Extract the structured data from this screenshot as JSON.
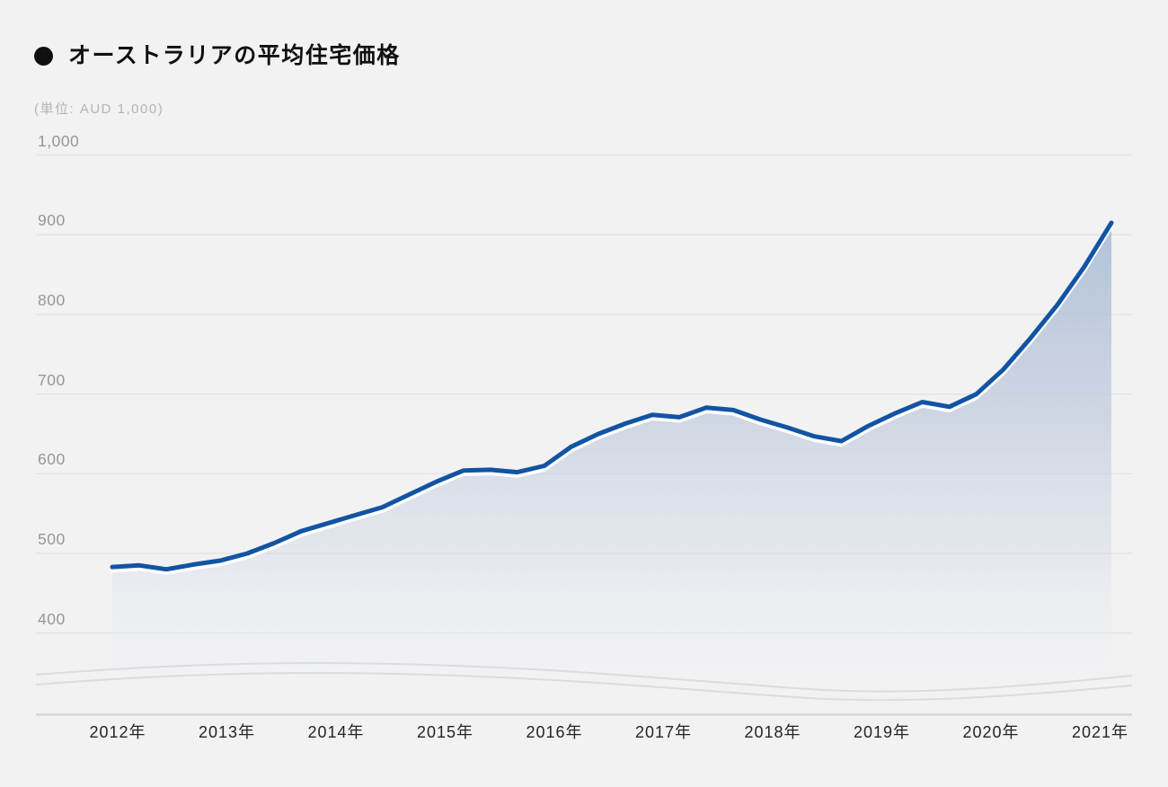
{
  "page": {
    "background": "#f2f2f3"
  },
  "header": {
    "bullet_icon": "circle-bullet",
    "title": "オーストラリアの平均住宅価格",
    "subtitle": "(単位: AUD 1,000)"
  },
  "chart_data": {
    "type": "area",
    "title": "オーストラリアの平均住宅価格",
    "unit_label": "(単位: AUD 1,000)",
    "frequency": "quarterly",
    "legend": "none",
    "grid": "horizontal-only",
    "ylim": [
      400,
      1000
    ],
    "periods": [
      "2012-Q1",
      "2012-Q2",
      "2012-Q3",
      "2012-Q4",
      "2013-Q1",
      "2013-Q2",
      "2013-Q3",
      "2013-Q4",
      "2014-Q1",
      "2014-Q2",
      "2014-Q3",
      "2014-Q4",
      "2015-Q1",
      "2015-Q2",
      "2015-Q3",
      "2015-Q4",
      "2016-Q1",
      "2016-Q2",
      "2016-Q3",
      "2016-Q4",
      "2017-Q1",
      "2017-Q2",
      "2017-Q3",
      "2017-Q4",
      "2018-Q1",
      "2018-Q2",
      "2018-Q3",
      "2018-Q4",
      "2019-Q1",
      "2019-Q2",
      "2019-Q3",
      "2019-Q4",
      "2020-Q1",
      "2020-Q2",
      "2020-Q3",
      "2020-Q4",
      "2021-Q1",
      "2021-Q2"
    ],
    "values": [
      483,
      485,
      480,
      486,
      491,
      500,
      513,
      528,
      538,
      548,
      558,
      574,
      590,
      604,
      605,
      602,
      610,
      634,
      650,
      663,
      674,
      671,
      683,
      680,
      668,
      658,
      647,
      641,
      660,
      676,
      690,
      684,
      700,
      731,
      770,
      812,
      860,
      915
    ],
    "x_tick_labels": [
      "2012年",
      "2013年",
      "2014年",
      "2015年",
      "2016年",
      "2017年",
      "2018年",
      "2019年",
      "2020年",
      "2021年"
    ],
    "y_ticks": [
      {
        "value": 1000,
        "label": "1,000"
      },
      {
        "value": 900,
        "label": "900"
      },
      {
        "value": 800,
        "label": "800"
      },
      {
        "value": 700,
        "label": "700"
      },
      {
        "value": 600,
        "label": "600"
      },
      {
        "value": 500,
        "label": "500"
      },
      {
        "value": 400,
        "label": "400"
      }
    ],
    "colors": {
      "background": "#f2f2f3",
      "line": "#1254a3",
      "line_halo": "#ffffff",
      "fill_top": "#a9bcd6",
      "fill_mid": "#c3cdde",
      "fill_low": "#d9dfe9",
      "fill_fade": "#eceff3",
      "gridline": "#e2e3e5",
      "axis_line": "#d2d4d7",
      "y_label": "#94979b",
      "x_label": "#222427",
      "title": "#0f1012",
      "subtitle": "#b3b5b8",
      "reflection": "#dbdde0"
    }
  }
}
